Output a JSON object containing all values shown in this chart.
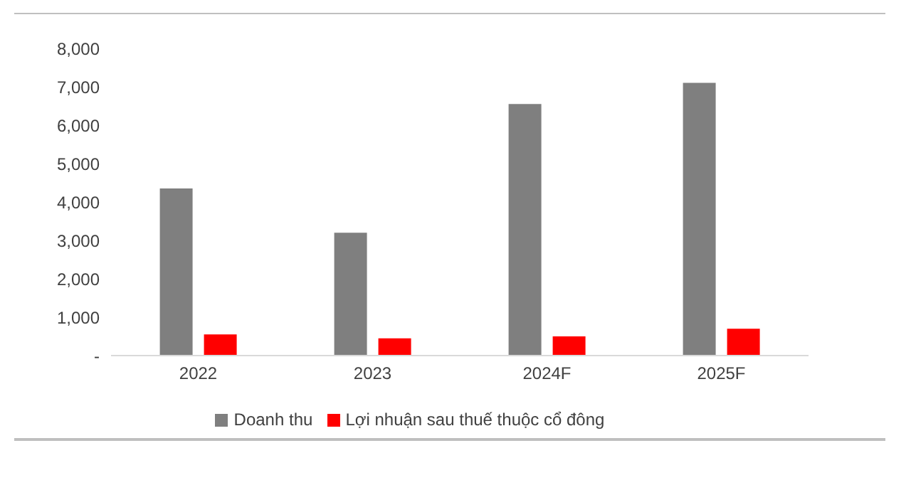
{
  "chart_data": {
    "type": "bar",
    "categories": [
      "2022",
      "2023",
      "2024F",
      "2025F"
    ],
    "series": [
      {
        "name": "Doanh thu",
        "color": "#7f7f7f",
        "values": [
          4350,
          3200,
          6550,
          7100
        ]
      },
      {
        "name": "Lợi nhuận sau thuế thuộc cổ đông",
        "color": "#ff0000",
        "values": [
          550,
          450,
          500,
          700
        ]
      }
    ],
    "ylim": [
      0,
      8000
    ],
    "yticks": [
      {
        "value": 0,
        "label": "-"
      },
      {
        "value": 1000,
        "label": "1,000"
      },
      {
        "value": 2000,
        "label": "2,000"
      },
      {
        "value": 3000,
        "label": "3,000"
      },
      {
        "value": 4000,
        "label": "4,000"
      },
      {
        "value": 5000,
        "label": "5,000"
      },
      {
        "value": 6000,
        "label": "6,000"
      },
      {
        "value": 7000,
        "label": "7,000"
      },
      {
        "value": 8000,
        "label": "8,000"
      }
    ],
    "grid": false,
    "legend": "bottom"
  }
}
